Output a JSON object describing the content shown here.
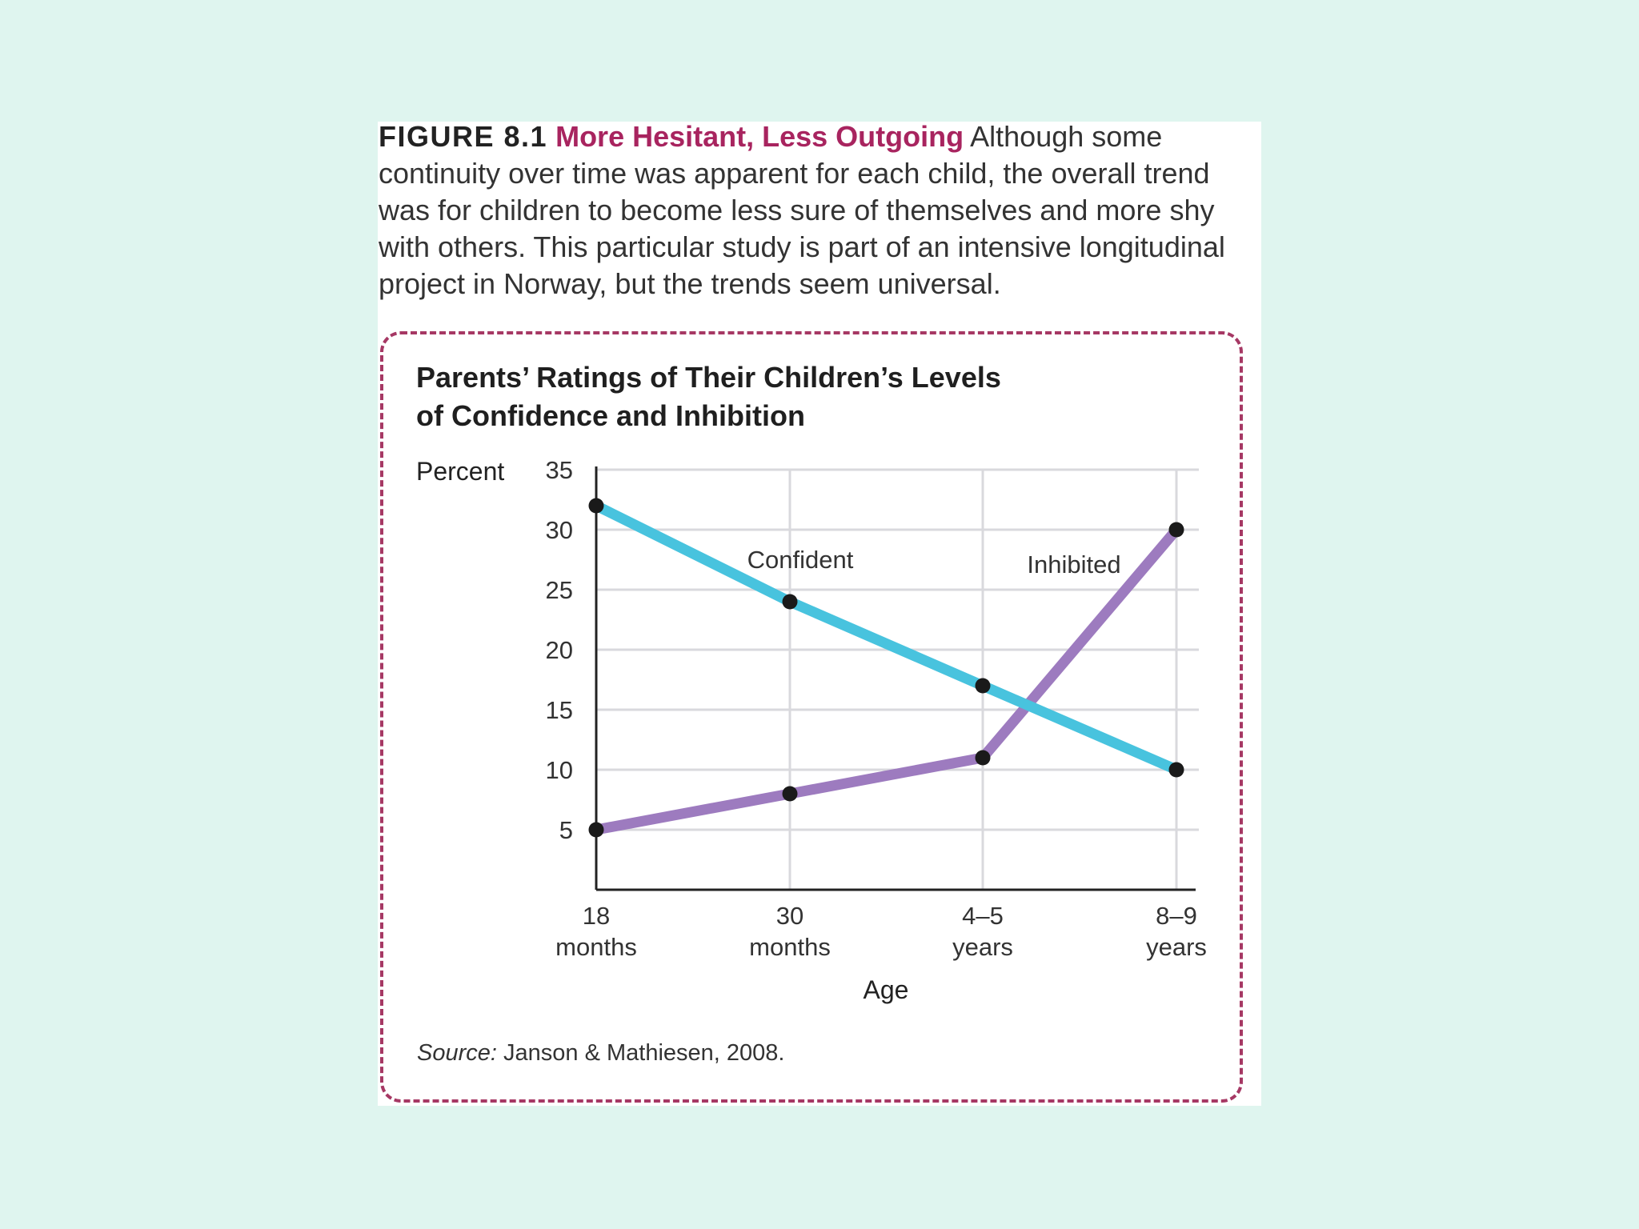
{
  "caption": {
    "figure_label": "FIGURE 8.1",
    "figure_title": "More Hesitant, Less Outgoing",
    "text": "Although some continuity over time was apparent for each child, the overall trend was for children to become less sure of themselves and more shy with others. This particular study is part of an intensive longitudinal project in Norway, but the trends seem universal."
  },
  "source": {
    "prefix": "Source:",
    "text": "Janson & Mathiesen, 2008."
  },
  "colors": {
    "confident": "#48c3de",
    "inhibited": "#9d7bbf",
    "accent": "#a8245f",
    "point": "#1a1a1a",
    "grid": "#d9d9dd"
  },
  "chart_data": {
    "type": "line",
    "title_lines": [
      "Parents’ Ratings of Their Children’s Levels",
      "of Confidence and Inhibition"
    ],
    "ylabel": "Percent",
    "xlabel": "Age",
    "categories": [
      [
        "18",
        "months"
      ],
      [
        "30",
        "months"
      ],
      [
        "4–5",
        "years"
      ],
      [
        "8–9",
        "years"
      ]
    ],
    "yticks": [
      5,
      10,
      15,
      20,
      25,
      30,
      35
    ],
    "ylim": [
      0,
      35
    ],
    "grid": true,
    "series": [
      {
        "name": "Confident",
        "values": [
          32,
          24,
          17,
          10
        ]
      },
      {
        "name": "Inhibited",
        "values": [
          5,
          8,
          11,
          30
        ]
      }
    ]
  }
}
